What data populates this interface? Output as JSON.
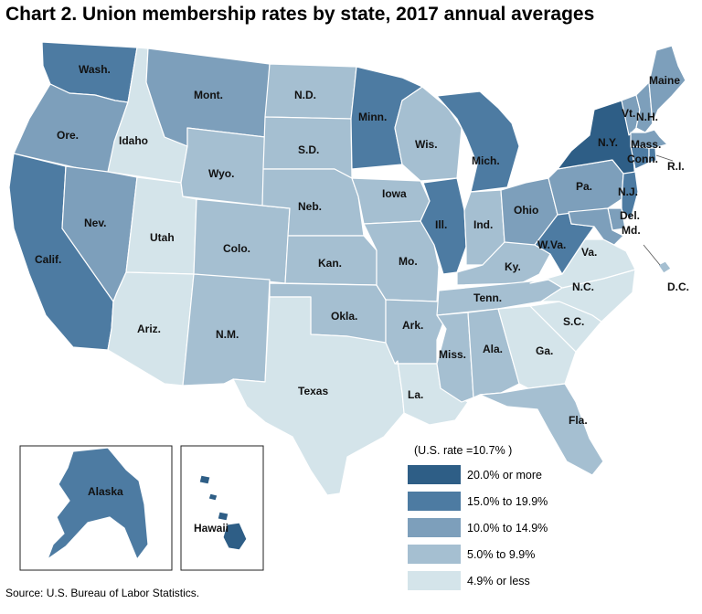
{
  "title": "Chart 2. Union membership rates by state, 2017 annual averages",
  "source": "Source: U.S. Bureau of Labor Statistics.",
  "legend": {
    "title": "(U.S. rate =10.7% )",
    "items": [
      {
        "label": "20.0% or more",
        "color": "#2e5e86"
      },
      {
        "label": "15.0% to 19.9%",
        "color": "#4d7ba2"
      },
      {
        "label": "10.0% to 14.9%",
        "color": "#7d9fbb"
      },
      {
        "label": "5.0% to 9.9%",
        "color": "#a5bfd1"
      },
      {
        "label": "4.9% or less",
        "color": "#d4e4ea"
      }
    ]
  },
  "states": [
    {
      "id": "wa",
      "label": "Wash.",
      "class": 1
    },
    {
      "id": "or",
      "label": "Ore.",
      "class": 2
    },
    {
      "id": "ca",
      "label": "Calif.",
      "class": 1
    },
    {
      "id": "id",
      "label": "Idaho",
      "class": 4
    },
    {
      "id": "nv",
      "label": "Nev.",
      "class": 2
    },
    {
      "id": "ut",
      "label": "Utah",
      "class": 4
    },
    {
      "id": "az",
      "label": "Ariz.",
      "class": 4
    },
    {
      "id": "mt",
      "label": "Mont.",
      "class": 2
    },
    {
      "id": "wy",
      "label": "Wyo.",
      "class": 3
    },
    {
      "id": "co",
      "label": "Colo.",
      "class": 3
    },
    {
      "id": "nm",
      "label": "N.M.",
      "class": 3
    },
    {
      "id": "nd",
      "label": "N.D.",
      "class": 3
    },
    {
      "id": "sd",
      "label": "S.D.",
      "class": 3
    },
    {
      "id": "ne",
      "label": "Neb.",
      "class": 3
    },
    {
      "id": "ks",
      "label": "Kan.",
      "class": 3
    },
    {
      "id": "ok",
      "label": "Okla.",
      "class": 3
    },
    {
      "id": "tx",
      "label": "Texas",
      "class": 4
    },
    {
      "id": "mn",
      "label": "Minn.",
      "class": 1
    },
    {
      "id": "ia",
      "label": "Iowa",
      "class": 3
    },
    {
      "id": "mo",
      "label": "Mo.",
      "class": 3
    },
    {
      "id": "ar",
      "label": "Ark.",
      "class": 3
    },
    {
      "id": "la",
      "label": "La.",
      "class": 4
    },
    {
      "id": "wi",
      "label": "Wis.",
      "class": 3
    },
    {
      "id": "il",
      "label": "Ill.",
      "class": 1
    },
    {
      "id": "mi",
      "label": "Mich.",
      "class": 1
    },
    {
      "id": "in",
      "label": "Ind.",
      "class": 3
    },
    {
      "id": "oh",
      "label": "Ohio",
      "class": 2
    },
    {
      "id": "ky",
      "label": "Ky.",
      "class": 3
    },
    {
      "id": "tn",
      "label": "Tenn.",
      "class": 3
    },
    {
      "id": "ms",
      "label": "Miss.",
      "class": 3
    },
    {
      "id": "al",
      "label": "Ala.",
      "class": 3
    },
    {
      "id": "ga",
      "label": "Ga.",
      "class": 4
    },
    {
      "id": "fl",
      "label": "Fla.",
      "class": 3
    },
    {
      "id": "sc",
      "label": "S.C.",
      "class": 4
    },
    {
      "id": "nc",
      "label": "N.C.",
      "class": 4
    },
    {
      "id": "va",
      "label": "Va.",
      "class": 4
    },
    {
      "id": "wv",
      "label": "W.Va.",
      "class": 1
    },
    {
      "id": "pa",
      "label": "Pa.",
      "class": 2
    },
    {
      "id": "ny",
      "label": "N.Y.",
      "class": 0
    },
    {
      "id": "vt",
      "label": "Vt.",
      "class": 2
    },
    {
      "id": "nh",
      "label": "N.H.",
      "class": 2
    },
    {
      "id": "me",
      "label": "Maine",
      "class": 2
    },
    {
      "id": "ma",
      "label": "Mass.",
      "class": 2
    },
    {
      "id": "ct",
      "label": "Conn.",
      "class": 1
    },
    {
      "id": "ri",
      "label": "R.I.",
      "class": 1
    },
    {
      "id": "nj",
      "label": "N.J.",
      "class": 1
    },
    {
      "id": "de",
      "label": "Del.",
      "class": 2
    },
    {
      "id": "md",
      "label": "Md.",
      "class": 2
    },
    {
      "id": "dc",
      "label": "D.C.",
      "class": 3
    },
    {
      "id": "ak",
      "label": "Alaska",
      "class": 1
    },
    {
      "id": "hi",
      "label": "Hawaii",
      "class": 0
    }
  ]
}
